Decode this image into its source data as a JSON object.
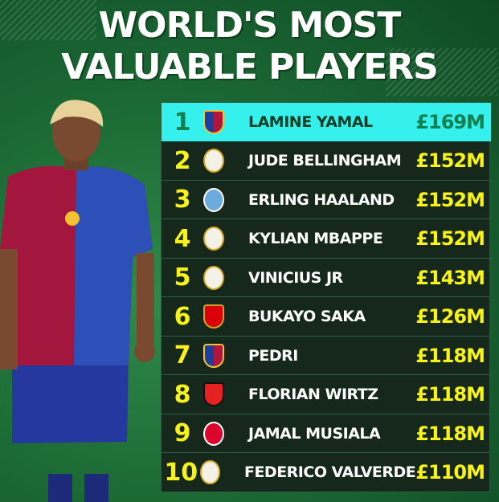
{
  "title": {
    "line1": "WORLD'S MOST",
    "line2": "VALUABLE PLAYERS"
  },
  "players": [
    {
      "rank": "1",
      "name": "LAMINE YAMAL",
      "value": "£169M",
      "club": "barcelona-crest"
    },
    {
      "rank": "2",
      "name": "JUDE BELLINGHAM",
      "value": "£152M",
      "club": "real-madrid-crest"
    },
    {
      "rank": "3",
      "name": "ERLING HAALAND",
      "value": "£152M",
      "club": "man-city-crest"
    },
    {
      "rank": "4",
      "name": "KYLIAN MBAPPE",
      "value": "£152M",
      "club": "real-madrid-crest"
    },
    {
      "rank": "5",
      "name": "VINICIUS JR",
      "value": "£143M",
      "club": "real-madrid-crest"
    },
    {
      "rank": "6",
      "name": "BUKAYO SAKA",
      "value": "£126M",
      "club": "arsenal-crest"
    },
    {
      "rank": "7",
      "name": "PEDRI",
      "value": "£118M",
      "club": "barcelona-crest"
    },
    {
      "rank": "8",
      "name": "FLORIAN WIRTZ",
      "value": "£118M",
      "club": "leverkusen-crest"
    },
    {
      "rank": "9",
      "name": "JAMAL MUSIALA",
      "value": "£118M",
      "club": "bayern-crest"
    },
    {
      "rank": "10",
      "name": "FEDERICO VALVERDE",
      "value": "£110M",
      "club": "real-madrid-crest"
    }
  ],
  "colors": {
    "highlight": "#36f0ee",
    "value": "#f6f21a",
    "panel": "#16271b",
    "background": "#1c6a35"
  }
}
